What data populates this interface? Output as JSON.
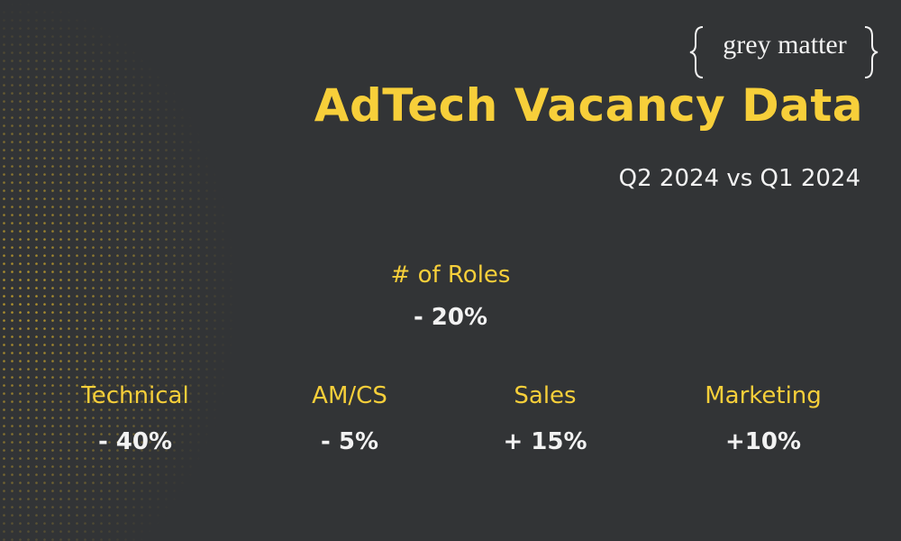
{
  "brand": "grey matter",
  "title": "AdTech Vacancy Data",
  "subtitle": "Q2 2024 vs Q1 2024",
  "overall": {
    "label": "# of Roles",
    "value": "- 20%"
  },
  "breakdown": [
    {
      "label": "Technical",
      "value": "- 40%"
    },
    {
      "label": "AM/CS",
      "value": "- 5%"
    },
    {
      "label": "Sales",
      "value": "+ 15%"
    },
    {
      "label": "Marketing",
      "value": "+10%"
    }
  ]
}
